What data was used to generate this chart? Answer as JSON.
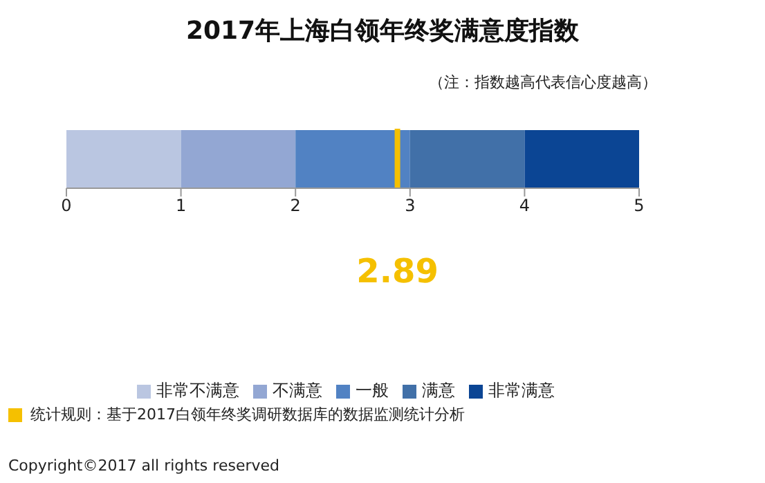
{
  "chart_data": {
    "type": "bar",
    "orientation": "horizontal",
    "stacked": true,
    "title": "2017年上海白领年终奖满意度指数",
    "subtitle": "（注：指数越高代表信心度越高）",
    "categories": [
      null
    ],
    "series": [
      {
        "name": "非常不满意",
        "color": "#bac6e1",
        "values": [
          1
        ]
      },
      {
        "name": "不满意",
        "color": "#93a7d3",
        "values": [
          1
        ]
      },
      {
        "name": "一般",
        "color": "#5182c3",
        "values": [
          1
        ]
      },
      {
        "name": "满意",
        "color": "#4170a8",
        "values": [
          1
        ]
      },
      {
        "name": "非常满意",
        "color": "#0b4594",
        "values": [
          1
        ]
      }
    ],
    "xlim": [
      0,
      5
    ],
    "xticks": [
      0,
      1,
      2,
      3,
      4,
      5
    ],
    "grid": false,
    "legend": "bottom",
    "ref_lines": [
      {
        "axis": "x",
        "value": 2.89,
        "label": "2.89",
        "color": "#f5c000"
      }
    ],
    "annotations": [
      "统计规则：基于2017白领年终奖调研数据库的数据监测统计分析",
      "Copyright©2017 all rights reserved"
    ]
  }
}
